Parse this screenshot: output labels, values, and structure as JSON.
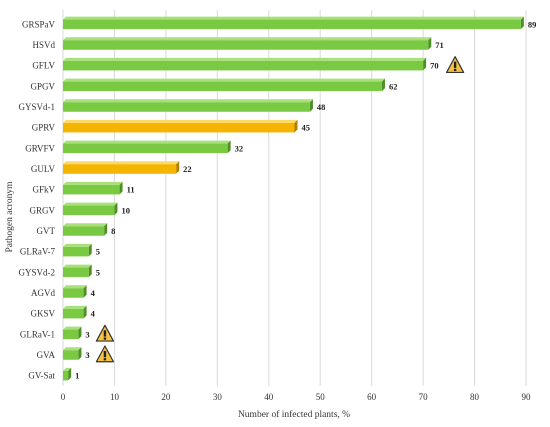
{
  "chart_data": {
    "type": "bar",
    "orientation": "horizontal",
    "title": "",
    "xlabel": "Number of infected plants, %",
    "ylabel": "Pathogen acronym",
    "xlim": [
      0,
      90
    ],
    "xticks": [
      "0",
      "10",
      "20",
      "30",
      "40",
      "50",
      "60",
      "70",
      "80",
      "90"
    ],
    "grid": "vertical",
    "categories": [
      "GRSPaV",
      "HSVd",
      "GFLV",
      "GPGV",
      "GYSVd-1",
      "GPRV",
      "GRVFV",
      "GULV",
      "GFkV",
      "GRGV",
      "GVT",
      "GLRaV-7",
      "GYSVd-2",
      "AGVd",
      "GKSV",
      "GLRaV-1",
      "GVA",
      "GV-Sat"
    ],
    "values": [
      89,
      71,
      70,
      62,
      48,
      45,
      32,
      22,
      11,
      10,
      8,
      5,
      5,
      4,
      4,
      3,
      3,
      1
    ],
    "value_labels": [
      "89",
      "71",
      "70",
      "62",
      "48",
      "45",
      "32",
      "22",
      "11",
      "10",
      "8",
      "5",
      "5",
      "4",
      "4",
      "3",
      "3",
      "1"
    ],
    "bar_colors": [
      "green",
      "green",
      "green",
      "green",
      "green",
      "orange",
      "green",
      "orange",
      "green",
      "green",
      "green",
      "green",
      "green",
      "green",
      "green",
      "green",
      "green",
      "green"
    ],
    "warning_markers": [
      "GFLV",
      "GLRaV-1",
      "GVA"
    ],
    "colors": {
      "green": "#7ac943",
      "green_dark": "#4e8f27",
      "green_light": "#a8e07a",
      "orange": "#f4b400",
      "orange_dark": "#b07f00",
      "orange_light": "#ffd966",
      "grid": "#d9d9d9",
      "warning_fill": "#f5c242",
      "warning_stroke": "#333333"
    },
    "warning_icon": "warning-triangle-icon"
  }
}
